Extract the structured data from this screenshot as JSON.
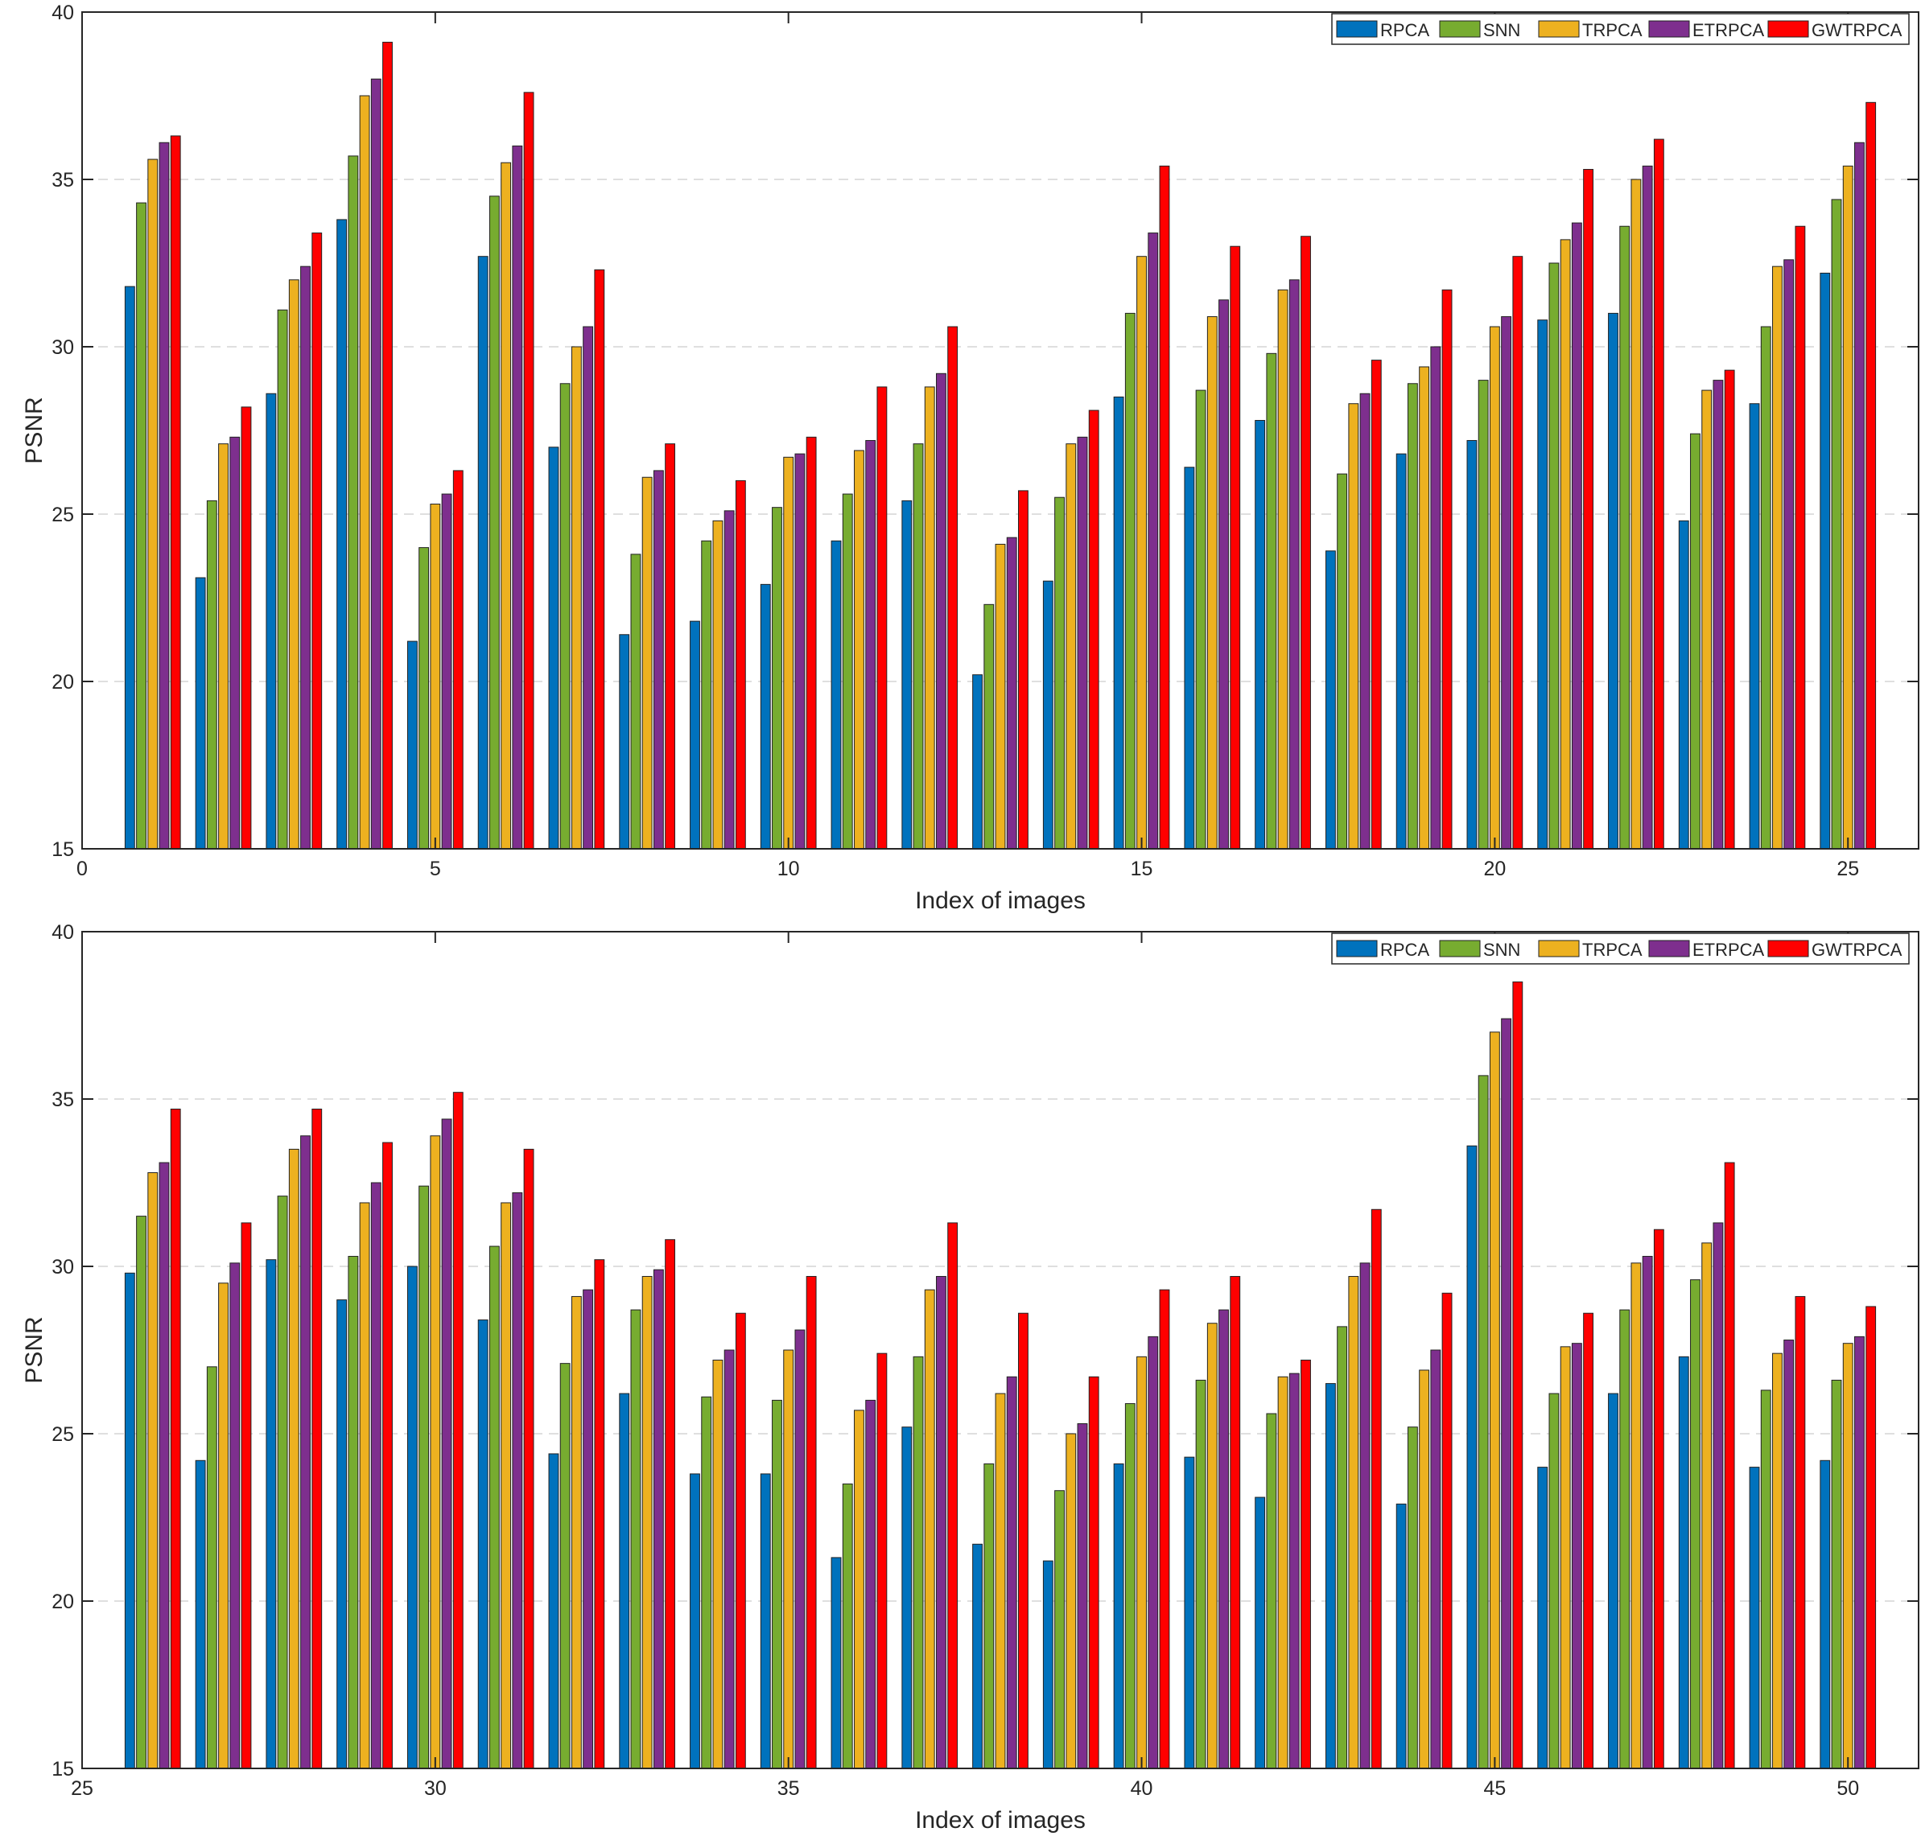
{
  "chart_data": [
    {
      "type": "bar",
      "xlabel": "Index of images",
      "ylabel": "PSNR",
      "ylim": [
        15,
        40
      ],
      "xlim": [
        0,
        26
      ],
      "xticks": [
        0,
        5,
        10,
        15,
        20,
        25
      ],
      "yticks": [
        15,
        20,
        25,
        30,
        35,
        40
      ],
      "grid": "horizontal dashed",
      "legend_position": "top-right",
      "categories": [
        1,
        2,
        3,
        4,
        5,
        6,
        7,
        8,
        9,
        10,
        11,
        12,
        13,
        14,
        15,
        16,
        17,
        18,
        19,
        20,
        21,
        22,
        23,
        24,
        25
      ],
      "series": [
        {
          "name": "RPCA",
          "color": "#0072BD",
          "values": [
            31.8,
            23.1,
            28.6,
            33.8,
            21.2,
            32.7,
            27.0,
            21.4,
            21.8,
            22.9,
            24.2,
            25.4,
            20.2,
            23.0,
            28.5,
            26.4,
            27.8,
            23.9,
            26.8,
            27.2,
            30.8,
            31.0,
            24.8,
            28.3,
            32.2
          ]
        },
        {
          "name": "SNN",
          "color": "#77AC30",
          "values": [
            34.3,
            25.4,
            31.1,
            35.7,
            24.0,
            34.5,
            28.9,
            23.8,
            24.2,
            25.2,
            25.6,
            27.1,
            22.3,
            25.5,
            31.0,
            28.7,
            29.8,
            26.2,
            28.9,
            29.0,
            32.5,
            33.6,
            27.4,
            30.6,
            34.4
          ]
        },
        {
          "name": "TRPCA",
          "color": "#EDB120",
          "values": [
            35.6,
            27.1,
            32.0,
            37.5,
            25.3,
            35.5,
            30.0,
            26.1,
            24.8,
            26.7,
            26.9,
            28.8,
            24.1,
            27.1,
            32.7,
            30.9,
            31.7,
            28.3,
            29.4,
            30.6,
            33.2,
            35.0,
            28.7,
            32.4,
            35.4
          ]
        },
        {
          "name": "ETRPCA",
          "color": "#7E2F8E",
          "values": [
            36.1,
            27.3,
            32.4,
            38.0,
            25.6,
            36.0,
            30.6,
            26.3,
            25.1,
            26.8,
            27.2,
            29.2,
            24.3,
            27.3,
            33.4,
            31.4,
            32.0,
            28.6,
            30.0,
            30.9,
            33.7,
            35.4,
            29.0,
            32.6,
            36.1
          ]
        },
        {
          "name": "GWTRPCA",
          "color": "#FF0000",
          "values": [
            36.3,
            28.2,
            33.4,
            39.1,
            26.3,
            37.6,
            32.3,
            27.1,
            26.0,
            27.3,
            28.8,
            30.6,
            25.7,
            28.1,
            35.4,
            33.0,
            33.3,
            29.6,
            31.7,
            32.7,
            35.3,
            36.2,
            29.3,
            33.6,
            37.3
          ]
        }
      ]
    },
    {
      "type": "bar",
      "xlabel": "Index of images",
      "ylabel": "PSNR",
      "ylim": [
        15,
        40
      ],
      "xlim": [
        25,
        51
      ],
      "xticks": [
        25,
        30,
        35,
        40,
        45,
        50
      ],
      "yticks": [
        15,
        20,
        25,
        30,
        35,
        40
      ],
      "grid": "horizontal dashed",
      "legend_position": "top-right",
      "categories": [
        26,
        27,
        28,
        29,
        30,
        31,
        32,
        33,
        34,
        35,
        36,
        37,
        38,
        39,
        40,
        41,
        42,
        43,
        44,
        45,
        46,
        47,
        48,
        49,
        50
      ],
      "series": [
        {
          "name": "RPCA",
          "color": "#0072BD",
          "values": [
            29.8,
            24.2,
            30.2,
            29.0,
            30.0,
            28.4,
            24.4,
            26.2,
            23.8,
            23.8,
            21.3,
            25.2,
            21.7,
            21.2,
            24.1,
            24.3,
            23.1,
            26.5,
            22.9,
            33.6,
            24.0,
            26.2,
            27.3,
            24.0,
            24.2
          ]
        },
        {
          "name": "SNN",
          "color": "#77AC30",
          "values": [
            31.5,
            27.0,
            32.1,
            30.3,
            32.4,
            30.6,
            27.1,
            28.7,
            26.1,
            26.0,
            23.5,
            27.3,
            24.1,
            23.3,
            25.9,
            26.6,
            25.6,
            28.2,
            25.2,
            35.7,
            26.2,
            28.7,
            29.6,
            26.3,
            26.6
          ]
        },
        {
          "name": "TRPCA",
          "color": "#EDB120",
          "values": [
            32.8,
            29.5,
            33.5,
            31.9,
            33.9,
            31.9,
            29.1,
            29.7,
            27.2,
            27.5,
            25.7,
            29.3,
            26.2,
            25.0,
            27.3,
            28.3,
            26.7,
            29.7,
            26.9,
            37.0,
            27.6,
            30.1,
            30.7,
            27.4,
            27.7
          ]
        },
        {
          "name": "ETRPCA",
          "color": "#7E2F8E",
          "values": [
            33.1,
            30.1,
            33.9,
            32.5,
            34.4,
            32.2,
            29.3,
            29.9,
            27.5,
            28.1,
            26.0,
            29.7,
            26.7,
            25.3,
            27.9,
            28.7,
            26.8,
            30.1,
            27.5,
            37.4,
            27.7,
            30.3,
            31.3,
            27.8,
            27.9
          ]
        },
        {
          "name": "GWTRPCA",
          "color": "#FF0000",
          "values": [
            34.7,
            31.3,
            34.7,
            33.7,
            35.2,
            33.5,
            30.2,
            30.8,
            28.6,
            29.7,
            27.4,
            31.3,
            28.6,
            26.7,
            29.3,
            29.7,
            27.2,
            31.7,
            29.2,
            38.5,
            28.6,
            31.1,
            33.1,
            29.1,
            28.8
          ]
        }
      ]
    }
  ]
}
